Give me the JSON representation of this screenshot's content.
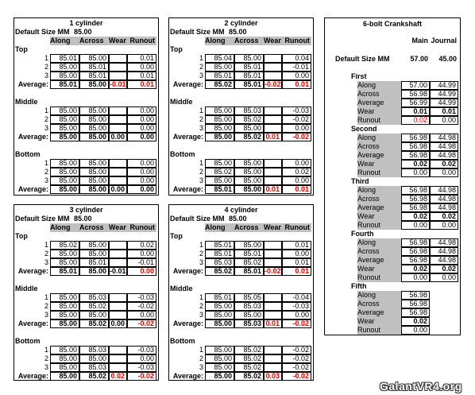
{
  "cylinders": [
    {
      "title": "1 cylinder",
      "default_label": "Default Size MM",
      "default_value": "85.00",
      "headers": [
        "Along",
        "Across",
        "Wear",
        "Runout"
      ],
      "sections": [
        {
          "name": "Top",
          "rows": [
            [
              "1",
              "85.01",
              "85.00",
              "0.01"
            ],
            [
              "2",
              "85.00",
              "85.01",
              "0.00"
            ],
            [
              "3",
              "85.00",
              "85.01",
              "0.01"
            ]
          ],
          "average": [
            "Average:",
            "85.01",
            "85.00",
            "-0.01",
            "0.01"
          ],
          "red": [
            3,
            4
          ]
        },
        {
          "name": "Middle",
          "rows": [
            [
              "1",
              "85.00",
              "85.00",
              "0.00"
            ],
            [
              "2",
              "85.00",
              "85.00",
              "0.00"
            ],
            [
              "3",
              "85.00",
              "85.00",
              "0.00"
            ]
          ],
          "average": [
            "Average:",
            "85.00",
            "85.00",
            "0.00",
            "0.00"
          ],
          "red": []
        },
        {
          "name": "Bottom",
          "rows": [
            [
              "1",
              "85.00",
              "85.00",
              "0.00"
            ],
            [
              "2",
              "85.00",
              "85.00",
              "0.00"
            ],
            [
              "3",
              "85.00",
              "85.00",
              "0.00"
            ]
          ],
          "average": [
            "Average:",
            "85.00",
            "85.00",
            "0.00",
            "0.00"
          ],
          "red": []
        }
      ]
    },
    {
      "title": "2 cylinder",
      "default_label": "Default Size MM",
      "default_value": "85.00",
      "headers": [
        "Along",
        "Across",
        "Wear",
        "Runout"
      ],
      "sections": [
        {
          "name": "Top",
          "rows": [
            [
              "1",
              "85.04",
              "85.00",
              "0.04"
            ],
            [
              "2",
              "85.00",
              "85.01",
              "-0.01"
            ],
            [
              "3",
              "85.01",
              "85.01",
              "0.00"
            ]
          ],
          "average": [
            "Average:",
            "85.02",
            "85.01",
            "-0.02",
            "0.01"
          ],
          "red": [
            3,
            4
          ]
        },
        {
          "name": "Middle",
          "rows": [
            [
              "1",
              "85.00",
              "85.03",
              "-0.03"
            ],
            [
              "2",
              "85.00",
              "85.02",
              "-0.02"
            ],
            [
              "3",
              "85.00",
              "85.00",
              "0.00"
            ]
          ],
          "average": [
            "Average:",
            "85.00",
            "85.02",
            "0.01",
            "-0.02"
          ],
          "red": [
            3,
            4
          ]
        },
        {
          "name": "Bottom",
          "rows": [
            [
              "1",
              "85.00",
              "85.00",
              "0.00"
            ],
            [
              "2",
              "85.02",
              "85.00",
              "0.02"
            ],
            [
              "3",
              "85.00",
              "85.00",
              "0.00"
            ]
          ],
          "average": [
            "Average:",
            "85.01",
            "85.00",
            "0.01",
            "0.01"
          ],
          "red": [
            3,
            4
          ]
        }
      ]
    },
    {
      "title": "3 cylinder",
      "default_label": "Default Size MM",
      "default_value": "85.00",
      "headers": [
        "Along",
        "Across",
        "Wear",
        "Runout"
      ],
      "sections": [
        {
          "name": "Top",
          "rows": [
            [
              "1",
              "85.02",
              "85.00",
              "0.02"
            ],
            [
              "2",
              "85.00",
              "85.00",
              "0.00"
            ],
            [
              "3",
              "85.00",
              "85.01",
              "-0.01"
            ]
          ],
          "average": [
            "Average:",
            "85.01",
            "85.00",
            "-0.01",
            "0.00"
          ],
          "red": [
            4
          ]
        },
        {
          "name": "Middle",
          "rows": [
            [
              "1",
              "85.00",
              "85.03",
              "-0.03"
            ],
            [
              "2",
              "85.00",
              "85.02",
              "-0.02"
            ],
            [
              "3",
              "85.00",
              "85.00",
              "0.00"
            ]
          ],
          "average": [
            "Average:",
            "85.00",
            "85.02",
            "0.00",
            "-0.02"
          ],
          "red": [
            4
          ]
        },
        {
          "name": "Bottom",
          "rows": [
            [
              "1",
              "85.00",
              "85.03",
              "-0.03"
            ],
            [
              "2",
              "85.00",
              "85.00",
              "0.00"
            ],
            [
              "3",
              "85.00",
              "85.03",
              "-0.03"
            ]
          ],
          "average": [
            "Average:",
            "85.00",
            "85.02",
            "0.02",
            "-0.02"
          ],
          "red": [
            3,
            4
          ]
        }
      ]
    },
    {
      "title": "4 cylinder",
      "default_label": "Default Size MM",
      "default_value": "85.00",
      "headers": [
        "Along",
        "Across",
        "Wear",
        "Runout"
      ],
      "sections": [
        {
          "name": "Top",
          "rows": [
            [
              "1",
              "85.01",
              "85.00",
              "0.01"
            ],
            [
              "2",
              "85.01",
              "85.01",
              "0.00"
            ],
            [
              "3",
              "85.03",
              "85.02",
              "0.01"
            ]
          ],
          "average": [
            "Average:",
            "85.02",
            "85.01",
            "-0.02",
            "0.01"
          ],
          "red": [
            3,
            4
          ]
        },
        {
          "name": "Middle",
          "rows": [
            [
              "1",
              "85.01",
              "85.05",
              "-0.04"
            ],
            [
              "2",
              "85.00",
              "85.03",
              "-0.03"
            ],
            [
              "3",
              "85.00",
              "85.00",
              "0.00"
            ]
          ],
          "average": [
            "Average:",
            "85.00",
            "85.03",
            "0.01",
            "-0.02"
          ],
          "red": [
            3,
            4
          ]
        },
        {
          "name": "Bottom",
          "rows": [
            [
              "1",
              "85.00",
              "85.02",
              "-0.02"
            ],
            [
              "2",
              "85.00",
              "85.02",
              "-0.02"
            ],
            [
              "3",
              "85.00",
              "85.02",
              "-0.02"
            ]
          ],
          "average": [
            "Average:",
            "85.00",
            "85.02",
            "0.03",
            "-0.02"
          ],
          "red": [
            3,
            4
          ]
        }
      ]
    }
  ],
  "crankshaft": {
    "title": "6-bolt Crankshaft",
    "headers": [
      "Main",
      "Journal"
    ],
    "default_label": "Default Size MM",
    "default_values": [
      "57.00",
      "45.00"
    ],
    "sections": [
      {
        "name": "First",
        "rows": [
          [
            "Along",
            "57.00",
            "44.99"
          ],
          [
            "Across",
            "56.98",
            "44.99"
          ],
          [
            "Average",
            "56.99",
            "44.99"
          ],
          [
            "Wear",
            "0.01",
            "0.01"
          ],
          [
            "Runout",
            "0.02",
            "0.00"
          ]
        ],
        "red": [
          [
            4,
            1
          ]
        ]
      },
      {
        "name": "Second",
        "rows": [
          [
            "Along",
            "56.98",
            "44.98"
          ],
          [
            "Across",
            "56.98",
            "44.98"
          ],
          [
            "Average",
            "56.98",
            "44.98"
          ],
          [
            "Wear",
            "0.02",
            "0.02"
          ],
          [
            "Runout",
            "0.00",
            "0.00"
          ]
        ],
        "red": []
      },
      {
        "name": "Third",
        "rows": [
          [
            "Along",
            "56.98",
            "44.98"
          ],
          [
            "Across",
            "56.98",
            "44.98"
          ],
          [
            "Average",
            "56.98",
            "44.98"
          ],
          [
            "Wear",
            "0.02",
            "0.02"
          ],
          [
            "Runout",
            "0.00",
            "0.00"
          ]
        ],
        "red": []
      },
      {
        "name": "Fourth",
        "rows": [
          [
            "Along",
            "56.98",
            "44.98"
          ],
          [
            "Across",
            "56.98",
            "44.98"
          ],
          [
            "Average",
            "56.98",
            "44.98"
          ],
          [
            "Wear",
            "0.02",
            "0.02"
          ],
          [
            "Runout",
            "0.00",
            "0.00"
          ]
        ],
        "red": []
      },
      {
        "name": "Fifth",
        "rows": [
          [
            "Along",
            "56.98"
          ],
          [
            "Across",
            "56.98"
          ],
          [
            "Average",
            "56.98"
          ],
          [
            "Wear",
            "0.02"
          ],
          [
            "Runout",
            "0.00"
          ]
        ],
        "red": []
      }
    ]
  },
  "watermark": "GalantVR4.org"
}
